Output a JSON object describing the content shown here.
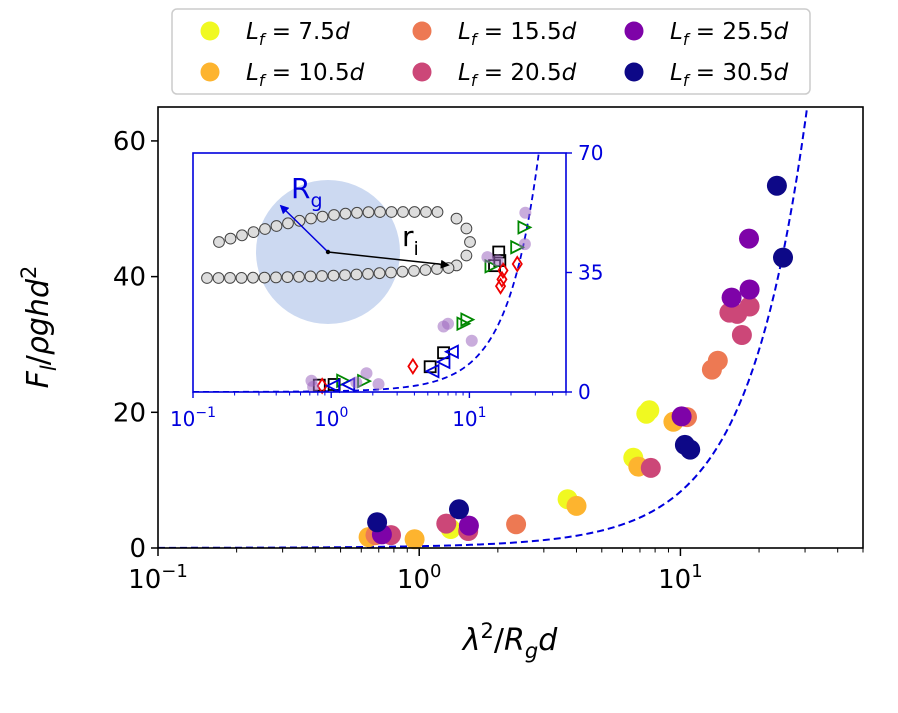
{
  "chart_data": [
    {
      "type": "scatter",
      "title": "",
      "xlabel": "λ²/R_g d",
      "ylabel": "F_l/ρghd²",
      "x_scale": "log",
      "xlim": [
        0.1,
        50
      ],
      "ylim": [
        0,
        65
      ],
      "x_ticks": [
        {
          "value": 0.1,
          "base": "10",
          "exp": "−1"
        },
        {
          "value": 1,
          "base": "10",
          "exp": "0"
        },
        {
          "value": 10,
          "base": "10",
          "exp": "1"
        }
      ],
      "y_ticks": [
        {
          "value": 0,
          "label": "0"
        },
        {
          "value": 20,
          "label": "20"
        },
        {
          "value": 40,
          "label": "40"
        },
        {
          "value": 60,
          "label": "60"
        }
      ],
      "fit_curve": {
        "style": "dashed",
        "color": "#0000dd",
        "form": "quadratic",
        "coef": [
          0.2,
          0.063
        ]
      },
      "legend_position": "top, outside",
      "series": [
        {
          "name": "L_f = 7.5d",
          "label_lhs": "L",
          "label_sub": "f",
          "label_rhs": " = 7.5",
          "label_unit": "d",
          "color": "#f0f921",
          "points": [
            [
              1.32,
              2.8
            ],
            [
              3.7,
              7.2
            ],
            [
              6.6,
              13.3
            ],
            [
              7.4,
              19.8
            ],
            [
              7.6,
              20.3
            ]
          ]
        },
        {
          "name": "L_f = 10.5d",
          "label_lhs": "L",
          "label_sub": "f",
          "label_rhs": " = 10.5",
          "label_unit": "d",
          "color": "#fdb42f",
          "points": [
            [
              0.64,
              1.6
            ],
            [
              0.96,
              1.3
            ],
            [
              4.0,
              6.2
            ],
            [
              6.9,
              12.0
            ],
            [
              9.4,
              18.6
            ]
          ]
        },
        {
          "name": "L_f = 15.5d",
          "label_lhs": "L",
          "label_sub": "f",
          "label_rhs": " = 15.5",
          "label_unit": "d",
          "color": "#ed7953",
          "points": [
            [
              0.68,
              1.9
            ],
            [
              2.35,
              3.5
            ],
            [
              10.6,
              19.3
            ],
            [
              13.2,
              26.3
            ],
            [
              13.9,
              27.6
            ]
          ]
        },
        {
          "name": "L_f = 20.5d",
          "label_lhs": "L",
          "label_sub": "f",
          "label_rhs": " = 20.5",
          "label_unit": "d",
          "color": "#cc4778",
          "points": [
            [
              0.78,
              1.9
            ],
            [
              1.27,
              3.6
            ],
            [
              1.54,
              2.5
            ],
            [
              7.7,
              11.8
            ],
            [
              15.4,
              34.7
            ],
            [
              16.5,
              34.5
            ],
            [
              17.2,
              31.4
            ],
            [
              18.4,
              35.6
            ]
          ]
        },
        {
          "name": "L_f = 25.5d",
          "label_lhs": "L",
          "label_sub": "f",
          "label_rhs": " = 25.5",
          "label_unit": "d",
          "color": "#7e03a8",
          "points": [
            [
              0.72,
              2.0
            ],
            [
              1.55,
              3.3
            ],
            [
              10.1,
              19.4
            ],
            [
              15.7,
              36.9
            ],
            [
              18.4,
              38.1
            ],
            [
              18.3,
              45.6
            ]
          ]
        },
        {
          "name": "L_f = 30.5d",
          "label_lhs": "L",
          "label_sub": "f",
          "label_rhs": " = 30.5",
          "label_unit": "d",
          "color": "#0d0887",
          "points": [
            [
              0.69,
              3.8
            ],
            [
              1.42,
              5.7
            ],
            [
              10.4,
              15.2
            ],
            [
              10.9,
              14.5
            ],
            [
              23.4,
              53.4
            ],
            [
              24.7,
              42.8
            ]
          ]
        }
      ]
    },
    {
      "type": "scatter",
      "title": "inset",
      "x_scale": "log",
      "xlim": [
        0.1,
        50
      ],
      "ylim": [
        0,
        70
      ],
      "axis_color": "#0000dd",
      "x_ticks": [
        {
          "value": 0.1,
          "base": "10",
          "exp": "−1"
        },
        {
          "value": 1,
          "base": "10",
          "exp": "0"
        },
        {
          "value": 10,
          "base": "10",
          "exp": "1"
        }
      ],
      "y_ticks": [
        {
          "value": 0,
          "label": "0"
        },
        {
          "value": 35,
          "label": "35"
        },
        {
          "value": 70,
          "label": "70"
        }
      ],
      "annotations": {
        "rg_label": "R",
        "rg_sub": "g",
        "ri_label": "r",
        "ri_sub": "i"
      },
      "marker_series": [
        {
          "name": "squares",
          "marker": "square",
          "color": "#000000",
          "points": [
            [
              0.82,
              2.0
            ],
            [
              1.05,
              2.2
            ],
            [
              5.2,
              7.4
            ],
            [
              6.5,
              11.5
            ],
            [
              15.2,
              37.0
            ],
            [
              16.3,
              41.0
            ],
            [
              16.6,
              38.5
            ]
          ]
        },
        {
          "name": "diamonds",
          "marker": "diamond",
          "color": "#ee0000",
          "points": [
            [
              0.86,
              1.8
            ],
            [
              3.9,
              7.5
            ],
            [
              16.8,
              31.0
            ],
            [
              17.2,
              33.0
            ],
            [
              17.5,
              35.6
            ],
            [
              22.2,
              37.5
            ]
          ]
        },
        {
          "name": "right-triangles",
          "marker": "tri-right",
          "color": "#008800",
          "points": [
            [
              1.2,
              3.3
            ],
            [
              1.7,
              3.2
            ],
            [
              8.9,
              20.0
            ],
            [
              9.5,
              21.2
            ],
            [
              14.2,
              36.8
            ],
            [
              21.8,
              42.4
            ],
            [
              24.6,
              48.2
            ]
          ]
        },
        {
          "name": "left-triangles",
          "marker": "tri-left",
          "color": "#0000dd",
          "points": [
            [
              1.05,
              1.8
            ],
            [
              1.35,
              2.2
            ],
            [
              5.5,
              6.1
            ],
            [
              6.6,
              8.8
            ],
            [
              7.6,
              11.8
            ]
          ]
        },
        {
          "name": "faded-dots",
          "marker": "faded-dot",
          "color": "#9c68c0",
          "points": [
            [
              0.72,
              3.3
            ],
            [
              0.74,
              1.5
            ],
            [
              1.52,
              2.8
            ],
            [
              1.8,
              5.5
            ],
            [
              2.2,
              2.3
            ],
            [
              6.5,
              19.2
            ],
            [
              7.0,
              20.0
            ],
            [
              10.4,
              15.0
            ],
            [
              13.5,
              39.5
            ],
            [
              16.0,
              38.5
            ],
            [
              25.2,
              43.3
            ],
            [
              25.4,
              52.5
            ]
          ]
        }
      ],
      "fit_curve": {
        "style": "dashed",
        "color": "#0000dd",
        "form": "quadratic",
        "coef": [
          0.2,
          0.063
        ]
      }
    }
  ]
}
